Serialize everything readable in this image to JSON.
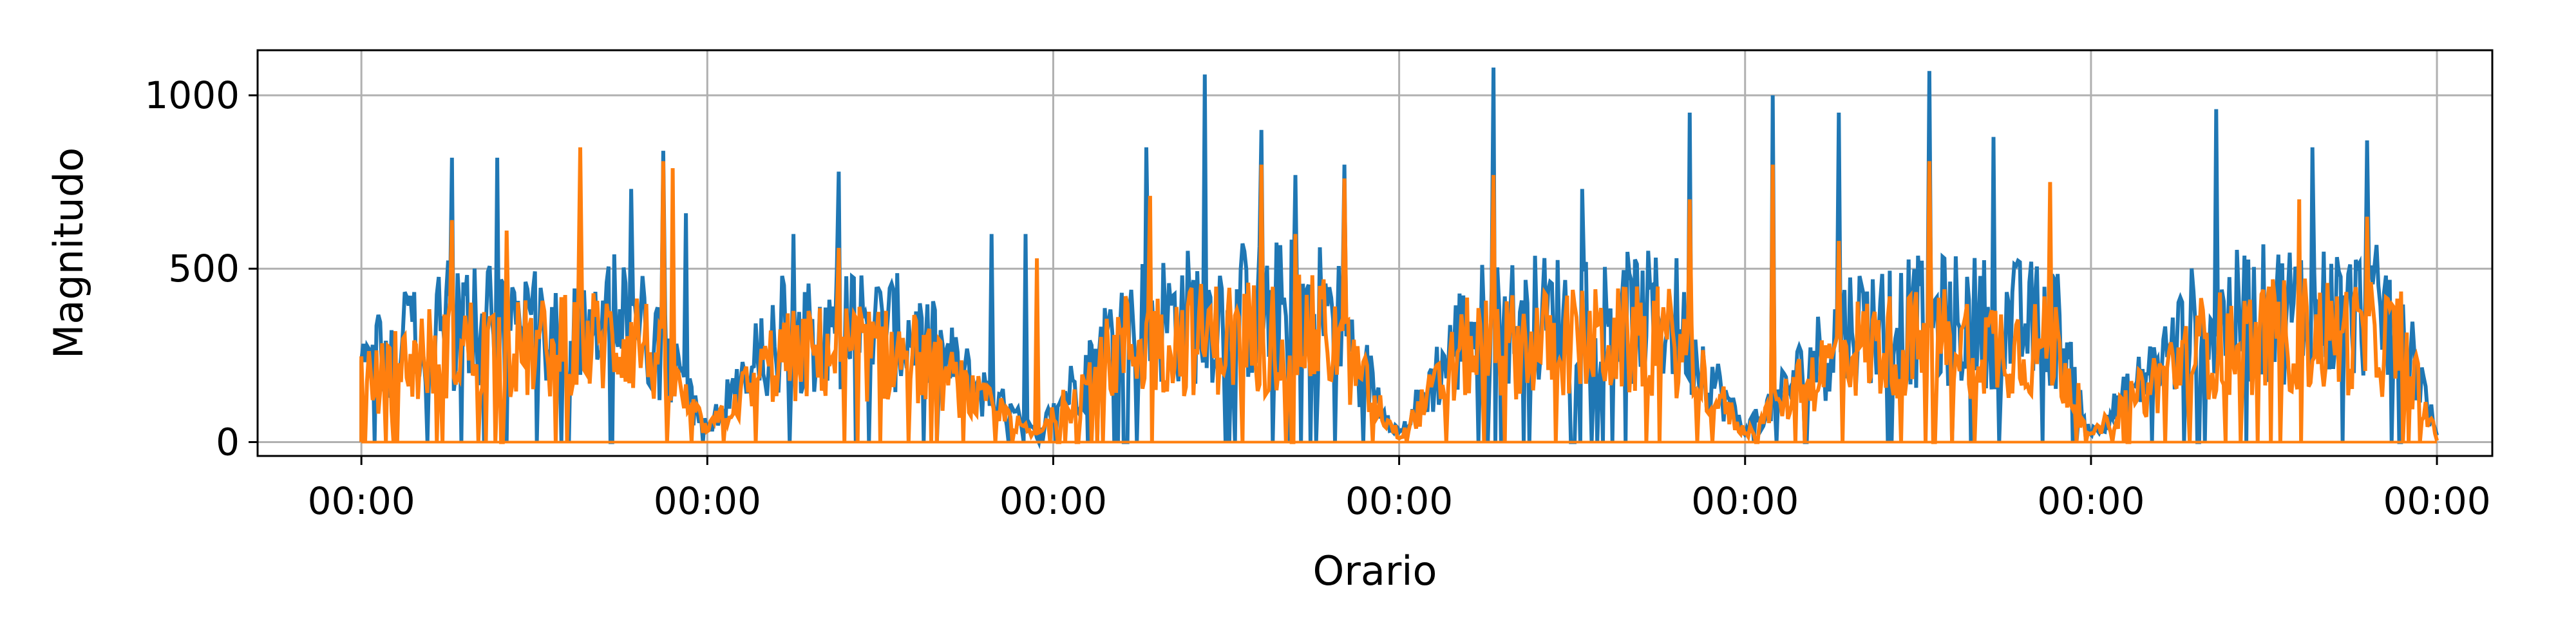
{
  "chart_data": {
    "type": "line",
    "title": "",
    "xlabel": "Orario",
    "ylabel": "Magnitudo",
    "x_tick_labels": [
      "00:00",
      "00:00",
      "00:00",
      "00:00",
      "00:00",
      "00:00",
      "00:00"
    ],
    "x_range": [
      0,
      6
    ],
    "xlim": [
      -0.3,
      6.16
    ],
    "y_ticks": [
      0,
      500,
      1000
    ],
    "y_tick_labels": [
      "0",
      "500",
      "1000"
    ],
    "ylim": [
      -40,
      1130
    ],
    "grid": true,
    "legend": "none",
    "series": [
      {
        "color": "#1f77b4",
        "peaks": [
          [
            0.26,
            820
          ],
          [
            0.39,
            820
          ],
          [
            0.78,
            730
          ],
          [
            0.87,
            840
          ],
          [
            0.94,
            660
          ],
          [
            1.25,
            600
          ],
          [
            1.38,
            780
          ],
          [
            1.82,
            600
          ],
          [
            1.92,
            600
          ],
          [
            2.27,
            850
          ],
          [
            2.44,
            1060
          ],
          [
            2.6,
            900
          ],
          [
            2.7,
            770
          ],
          [
            2.84,
            800
          ],
          [
            3.27,
            1080
          ],
          [
            3.53,
            730
          ],
          [
            3.84,
            950
          ],
          [
            4.08,
            1000
          ],
          [
            4.27,
            950
          ],
          [
            4.53,
            1070
          ],
          [
            4.72,
            880
          ],
          [
            5.36,
            960
          ],
          [
            5.64,
            850
          ],
          [
            5.8,
            870
          ]
        ],
        "band": [
          [
            0.0,
            280
          ],
          [
            0.25,
            420
          ],
          [
            0.5,
            400
          ],
          [
            0.8,
            450
          ],
          [
            1.0,
            50
          ],
          [
            1.2,
            380
          ],
          [
            1.4,
            420
          ],
          [
            1.6,
            380
          ],
          [
            1.95,
            30
          ],
          [
            2.2,
            430
          ],
          [
            2.5,
            470
          ],
          [
            2.8,
            480
          ],
          [
            3.0,
            30
          ],
          [
            3.2,
            420
          ],
          [
            3.5,
            450
          ],
          [
            3.8,
            440
          ],
          [
            4.0,
            40
          ],
          [
            4.3,
            420
          ],
          [
            4.6,
            440
          ],
          [
            4.9,
            420
          ],
          [
            5.0,
            30
          ],
          [
            5.3,
            420
          ],
          [
            5.6,
            480
          ],
          [
            5.9,
            450
          ],
          [
            6.0,
            20
          ]
        ]
      },
      {
        "color": "#ff7f0e",
        "peaks": [
          [
            0.26,
            640
          ],
          [
            0.42,
            610
          ],
          [
            0.63,
            850
          ],
          [
            0.87,
            810
          ],
          [
            0.9,
            790
          ],
          [
            1.38,
            560
          ],
          [
            1.95,
            530
          ],
          [
            2.28,
            710
          ],
          [
            2.6,
            800
          ],
          [
            2.7,
            600
          ],
          [
            2.84,
            760
          ],
          [
            3.27,
            770
          ],
          [
            3.84,
            700
          ],
          [
            4.08,
            800
          ],
          [
            4.27,
            580
          ],
          [
            4.53,
            810
          ],
          [
            4.88,
            750
          ],
          [
            5.6,
            700
          ],
          [
            5.8,
            650
          ]
        ],
        "band": [
          [
            0.0,
            200
          ],
          [
            0.25,
            350
          ],
          [
            0.5,
            330
          ],
          [
            0.8,
            380
          ],
          [
            1.0,
            40
          ],
          [
            1.2,
            300
          ],
          [
            1.4,
            330
          ],
          [
            1.6,
            300
          ],
          [
            1.95,
            20
          ],
          [
            2.2,
            350
          ],
          [
            2.5,
            380
          ],
          [
            2.8,
            390
          ],
          [
            3.0,
            20
          ],
          [
            3.2,
            340
          ],
          [
            3.5,
            360
          ],
          [
            3.8,
            360
          ],
          [
            4.0,
            30
          ],
          [
            4.3,
            340
          ],
          [
            4.6,
            360
          ],
          [
            4.9,
            340
          ],
          [
            5.0,
            20
          ],
          [
            5.3,
            340
          ],
          [
            5.6,
            390
          ],
          [
            5.9,
            360
          ],
          [
            6.0,
            10
          ]
        ]
      }
    ]
  }
}
